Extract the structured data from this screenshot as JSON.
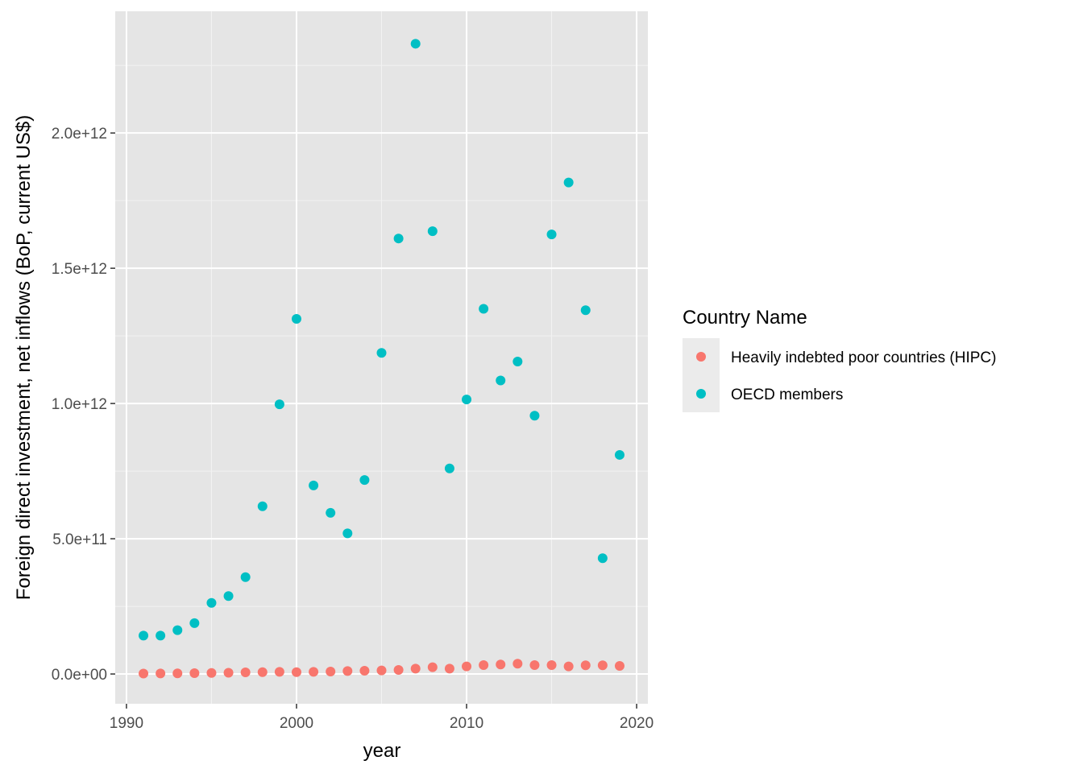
{
  "chart_data": {
    "type": "scatter",
    "xlabel": "year",
    "ylabel": "Foreign direct investment, net inflows (BoP, current US$)",
    "xlim": [
      1990,
      2020
    ],
    "ylim": [
      -110000000000.0,
      2450000000000.0
    ],
    "x_ticks": [
      1990,
      2000,
      2010,
      2020
    ],
    "x_tick_labels": [
      "1990",
      "2000",
      "2010",
      "2020"
    ],
    "y_ticks": [
      0,
      500000000000.0,
      1000000000000.0,
      1500000000000.0,
      2000000000000.0
    ],
    "y_tick_labels": [
      "0.0e+00",
      "5.0e+11",
      "1.0e+12",
      "1.5e+12",
      "2.0e+12"
    ],
    "grid": true,
    "panel_background": "#e5e5e5",
    "legend": {
      "title": "Country Name",
      "position": "right"
    },
    "series": [
      {
        "name": "Heavily indebted poor countries (HIPC)",
        "color": "#f8766d",
        "x": [
          1991,
          1992,
          1993,
          1994,
          1995,
          1996,
          1997,
          1998,
          1999,
          2000,
          2001,
          2002,
          2003,
          2004,
          2005,
          2006,
          2007,
          2008,
          2009,
          2010,
          2011,
          2012,
          2013,
          2014,
          2015,
          2016,
          2017,
          2018,
          2019
        ],
        "y": [
          1500000000.0,
          2000000000.0,
          2500000000.0,
          3000000000.0,
          4000000000.0,
          4500000000.0,
          6000000000.0,
          7000000000.0,
          8000000000.0,
          7000000000.0,
          8000000000.0,
          9000000000.0,
          11000000000.0,
          12000000000.0,
          13000000000.0,
          15000000000.0,
          20000000000.0,
          25000000000.0,
          20000000000.0,
          28000000000.0,
          33000000000.0,
          35000000000.0,
          38000000000.0,
          33000000000.0,
          33000000000.0,
          28000000000.0,
          32000000000.0,
          32000000000.0,
          30000000000.0
        ]
      },
      {
        "name": "OECD members",
        "color": "#00bfc4",
        "x": [
          1991,
          1992,
          1993,
          1994,
          1995,
          1996,
          1997,
          1998,
          1999,
          2000,
          2001,
          2002,
          2003,
          2004,
          2005,
          2006,
          2007,
          2008,
          2009,
          2010,
          2011,
          2012,
          2013,
          2014,
          2015,
          2016,
          2017,
          2018,
          2019
        ],
        "y": [
          142000000000.0,
          142000000000.0,
          162000000000.0,
          188000000000.0,
          263000000000.0,
          288000000000.0,
          358000000000.0,
          620000000000.0,
          997000000000.0,
          1313000000000.0,
          697000000000.0,
          596000000000.0,
          520000000000.0,
          717000000000.0,
          1187000000000.0,
          1610000000000.0,
          2330000000000.0,
          1637000000000.0,
          760000000000.0,
          1015000000000.0,
          1350000000000.0,
          1085000000000.0,
          1155000000000.0,
          955000000000.0,
          1625000000000.0,
          1817000000000.0,
          1345000000000.0,
          428000000000.0,
          810000000000.0
        ]
      }
    ]
  }
}
